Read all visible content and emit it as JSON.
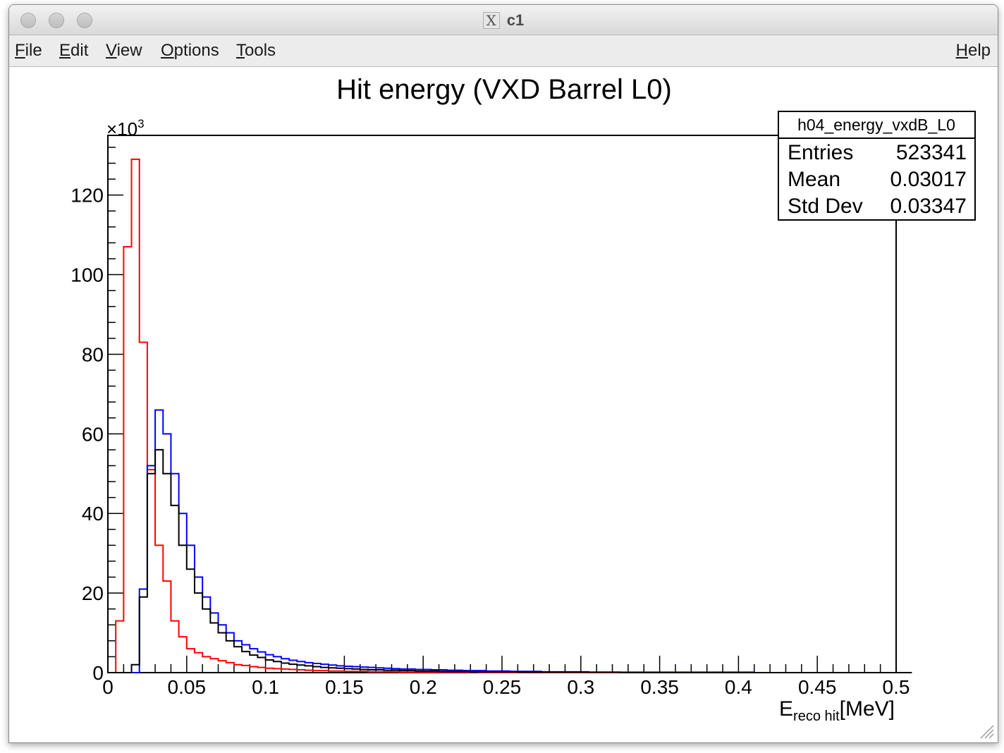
{
  "window": {
    "title": "c1",
    "title_icon": "x11-icon"
  },
  "menubar": {
    "items": [
      {
        "label": "File",
        "accel": "F",
        "rest": "ile"
      },
      {
        "label": "Edit",
        "accel": "E",
        "rest": "dit"
      },
      {
        "label": "View",
        "accel": "V",
        "rest": "iew"
      },
      {
        "label": "Options",
        "accel": "O",
        "rest": "ptions"
      },
      {
        "label": "Tools",
        "accel": "T",
        "rest": "ools"
      }
    ],
    "help": {
      "label": "Help",
      "accel": "H",
      "rest": "elp"
    }
  },
  "stats_box": {
    "name": "h04_energy_vxdB_L0",
    "rows": [
      {
        "label": "Entries",
        "value": "523341"
      },
      {
        "label": "Mean",
        "value": "0.03017"
      },
      {
        "label": "Std Dev",
        "value": "0.03347"
      }
    ]
  },
  "chart_data": {
    "type": "line",
    "step": true,
    "title": "Hit energy (VXD Barrel L0)",
    "xlabel_main": "E",
    "xlabel_sub": "reco hit",
    "xlabel_unit": "[MeV]",
    "y_multiplier": "×10",
    "y_multiplier_exp": "3",
    "xlim": [
      0,
      0.5
    ],
    "ylim": [
      0,
      135
    ],
    "bin_width": 0.005,
    "x_ticks": [
      "0",
      "0.05",
      "0.1",
      "0.15",
      "0.2",
      "0.25",
      "0.3",
      "0.35",
      "0.4",
      "0.45",
      "0.5"
    ],
    "x_tick_values": [
      0,
      0.05,
      0.1,
      0.15,
      0.2,
      0.25,
      0.3,
      0.35,
      0.4,
      0.45,
      0.5
    ],
    "y_ticks": [
      "0",
      "20",
      "40",
      "60",
      "80",
      "100",
      "120"
    ],
    "y_tick_values": [
      0,
      20,
      40,
      60,
      80,
      100,
      120
    ],
    "grid": false,
    "series": [
      {
        "color": "#ff0000",
        "values": [
          0,
          13,
          107,
          129,
          83,
          51,
          32,
          23,
          13,
          9,
          6,
          5,
          4,
          3.5,
          3,
          2.5,
          2,
          1.8,
          1.5,
          1.3,
          1.1,
          1,
          0.9,
          0.8,
          0.7,
          0.6,
          0.5,
          0.5,
          0.4,
          0.4,
          0.3,
          0.3,
          0.3,
          0.2,
          0.2,
          0.2,
          0.2,
          0.1,
          0.1,
          0.1,
          0.1,
          0.1,
          0.1,
          0.1,
          0.1,
          0.1,
          0.1,
          0,
          0,
          0,
          0,
          0,
          0,
          0,
          0,
          0,
          0,
          0,
          0,
          0,
          0,
          0,
          0,
          0,
          0,
          0,
          0,
          0,
          0,
          0,
          0,
          0,
          0,
          0,
          0,
          0,
          0,
          0,
          0,
          0,
          0,
          0,
          0,
          0,
          0,
          0,
          0,
          0,
          0,
          0,
          0,
          0,
          0,
          0,
          0,
          0,
          0,
          0,
          0,
          0
        ]
      },
      {
        "color": "#0000ff",
        "values": [
          0,
          0,
          0,
          0,
          21,
          52,
          66,
          60,
          50,
          40,
          32,
          24,
          19,
          15,
          12,
          10,
          8,
          7,
          6,
          5.2,
          4.5,
          4,
          3.5,
          3.1,
          2.8,
          2.5,
          2.3,
          2.1,
          1.9,
          1.7,
          1.6,
          1.5,
          1.4,
          1.3,
          1.2,
          1.1,
          1.0,
          0.9,
          0.9,
          0.8,
          0.8,
          0.7,
          0.7,
          0.6,
          0.6,
          0.5,
          0.5,
          0.5,
          0.4,
          0.4,
          0.4,
          0.3,
          0.3,
          0.3,
          0.3,
          0.2,
          0.2,
          0.2,
          0.2,
          0.2,
          0.2,
          0.1,
          0.1,
          0.1,
          0.1,
          0.1,
          0.1,
          0.1,
          0.1,
          0.1,
          0.1,
          0.1,
          0.1,
          0.1,
          0.1,
          0.1,
          0.1,
          0.1,
          0.1,
          0.1,
          0.1,
          0.1,
          0,
          0,
          0,
          0,
          0,
          0,
          0,
          0,
          0,
          0,
          0,
          0,
          0,
          0,
          0,
          0,
          0,
          0
        ]
      },
      {
        "color": "#000000",
        "values": [
          0,
          0,
          0,
          2,
          19,
          50,
          56,
          50,
          42,
          32,
          26,
          20,
          16,
          12.5,
          10,
          8,
          6.5,
          5.3,
          4.4,
          3.8,
          3.2,
          2.8,
          2.4,
          2.1,
          1.9,
          1.7,
          1.5,
          1.3,
          1.2,
          1.1,
          1.0,
          0.9,
          0.8,
          0.7,
          0.7,
          0.6,
          0.6,
          0.5,
          0.5,
          0.4,
          0.4,
          0.4,
          0.3,
          0.3,
          0.3,
          0.3,
          0.2,
          0.2,
          0.2,
          0.2,
          0.2,
          0.2,
          0.1,
          0.1,
          0.1,
          0.1,
          0.1,
          0.1,
          0.1,
          0.1,
          0.1,
          0.1,
          0.1,
          0.1,
          0.1,
          0,
          0,
          0,
          0,
          0,
          0,
          0,
          0,
          0,
          0,
          0,
          0,
          0,
          0,
          0,
          0,
          0,
          0,
          0,
          0,
          0,
          0,
          0,
          0,
          0,
          0,
          0,
          0,
          0,
          0,
          0,
          0,
          0,
          0,
          0,
          0,
          0
        ]
      }
    ]
  }
}
